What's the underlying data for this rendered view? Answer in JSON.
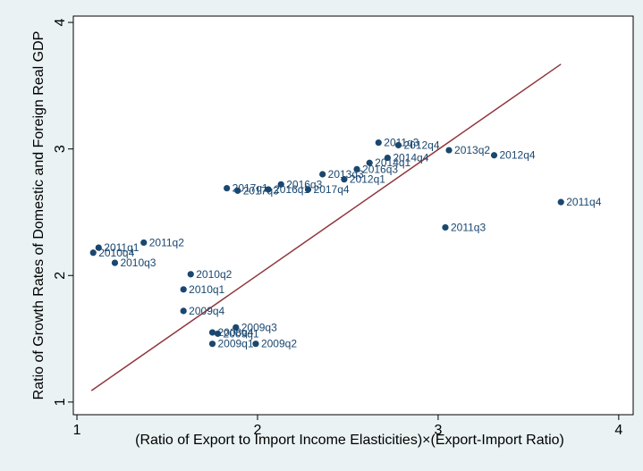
{
  "chart_data": {
    "type": "scatter",
    "title": "",
    "xlabel": "(Ratio of Export to Import Income Elasticities)×(Export-Import Ratio)",
    "ylabel": "Ratio of Growth Rates of Domestic and Foreign Real GDP",
    "xlim": [
      0.98,
      4.08
    ],
    "ylim": [
      0.9,
      4.05
    ],
    "xticks": [
      "1",
      "2",
      "3",
      "4"
    ],
    "yticks": [
      "1",
      "2",
      "3",
      "4"
    ],
    "grid": false,
    "legend": "none",
    "series": [
      {
        "points": [
          {
            "x": 1.09,
            "y": 2.18,
            "label": "2010q4"
          },
          {
            "x": 1.12,
            "y": 2.22,
            "label": "2011q1"
          },
          {
            "x": 1.21,
            "y": 2.1,
            "label": "2010q3"
          },
          {
            "x": 1.37,
            "y": 2.26,
            "label": "2011q2"
          },
          {
            "x": 1.63,
            "y": 2.01,
            "label": "2010q2"
          },
          {
            "x": 1.59,
            "y": 1.89,
            "label": "2010q1"
          },
          {
            "x": 1.59,
            "y": 1.72,
            "label": "2009q4"
          },
          {
            "x": 1.88,
            "y": 1.59,
            "label": "2009q3"
          },
          {
            "x": 1.75,
            "y": 1.55,
            "label": "2008q4"
          },
          {
            "x": 1.78,
            "y": 1.54,
            "label": "2009q1"
          },
          {
            "x": 1.75,
            "y": 1.46,
            "label": "2009q1"
          },
          {
            "x": 1.99,
            "y": 1.46,
            "label": "2009q2"
          },
          {
            "x": 1.83,
            "y": 2.69,
            "label": "2017q1"
          },
          {
            "x": 1.89,
            "y": 2.67,
            "label": "2017q3"
          },
          {
            "x": 2.06,
            "y": 2.68,
            "label": "2016q1"
          },
          {
            "x": 2.13,
            "y": 2.72,
            "label": "2016q3"
          },
          {
            "x": 2.28,
            "y": 2.68,
            "label": "2017q4"
          },
          {
            "x": 2.36,
            "y": 2.8,
            "label": "2013q3"
          },
          {
            "x": 2.48,
            "y": 2.76,
            "label": "2012q1"
          },
          {
            "x": 2.55,
            "y": 2.84,
            "label": "2016q3"
          },
          {
            "x": 2.62,
            "y": 2.89,
            "label": "2014q1"
          },
          {
            "x": 2.67,
            "y": 3.05,
            "label": "2011q3"
          },
          {
            "x": 2.72,
            "y": 2.93,
            "label": "2014q4"
          },
          {
            "x": 2.78,
            "y": 3.03,
            "label": "2012q4"
          },
          {
            "x": 3.06,
            "y": 2.99,
            "label": "2013q2"
          },
          {
            "x": 3.31,
            "y": 2.95,
            "label": "2012q4"
          },
          {
            "x": 3.04,
            "y": 2.38,
            "label": "2011q3"
          },
          {
            "x": 3.68,
            "y": 2.58,
            "label": "2011q4"
          }
        ]
      }
    ],
    "fit_line": {
      "from": {
        "x": 1.08,
        "y": 1.09
      },
      "to": {
        "x": 3.68,
        "y": 3.67
      }
    },
    "colors": {
      "plot_background": "#ffffff",
      "outer_background": "#eaf2f3",
      "marker": "#1a476f",
      "label_text": "#1a476f",
      "fit_line": "#90353b"
    }
  }
}
